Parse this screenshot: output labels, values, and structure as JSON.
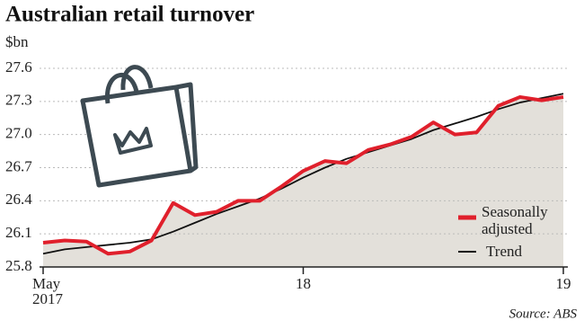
{
  "chart_data": {
    "type": "line",
    "title": "Australian retail turnover",
    "y_label": "$bn",
    "source": "Source: ABS",
    "categories": [
      "May 2017",
      null,
      null,
      null,
      null,
      null,
      null,
      null,
      null,
      null,
      null,
      null,
      "18",
      null,
      null,
      null,
      null,
      null,
      null,
      null,
      null,
      null,
      null,
      null,
      "19"
    ],
    "series": [
      {
        "name": "Seasonally adjusted",
        "color": "#e0202c",
        "area_color": "#e3e0da",
        "values": [
          26.02,
          26.04,
          26.03,
          25.92,
          25.94,
          26.04,
          26.38,
          26.27,
          26.3,
          26.4,
          26.4,
          26.53,
          26.67,
          26.76,
          26.74,
          26.86,
          26.91,
          26.98,
          27.11,
          27.0,
          27.02,
          27.26,
          27.34,
          27.31,
          27.34
        ]
      },
      {
        "name": "Trend",
        "color": "#111111",
        "values": [
          25.92,
          25.96,
          25.98,
          26.0,
          26.02,
          26.05,
          26.12,
          26.2,
          26.28,
          26.35,
          26.42,
          26.51,
          26.61,
          26.7,
          26.78,
          26.84,
          26.9,
          26.96,
          27.04,
          27.1,
          27.16,
          27.23,
          27.29,
          27.33,
          27.37
        ]
      }
    ],
    "ylim": [
      25.8,
      27.6
    ],
    "yticks": [
      25.8,
      26.1,
      26.4,
      26.7,
      {
        "value": 27,
        "label": "27.0"
      },
      27.3,
      27.6
    ],
    "grid": true,
    "legend": "lower right"
  }
}
